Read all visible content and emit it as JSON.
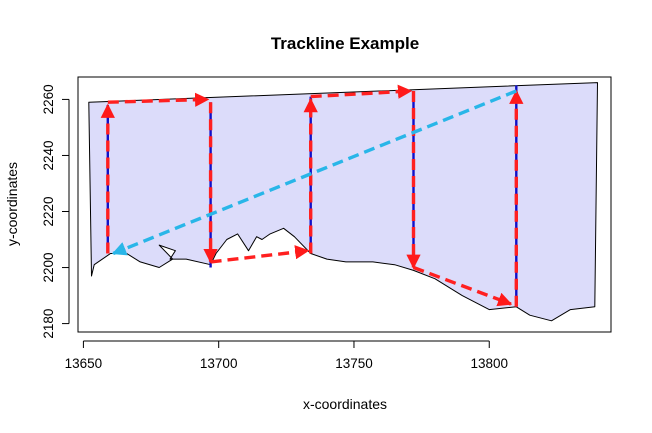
{
  "chart_data": {
    "type": "line",
    "title": "Trackline Example",
    "xlabel": "x-coordinates",
    "ylabel": "y-coordinates",
    "xlim": [
      13648,
      13845
    ],
    "ylim": [
      2177,
      2268
    ],
    "x_ticks": [
      13650,
      13700,
      13750,
      13800
    ],
    "y_ticks": [
      2180,
      2200,
      2220,
      2240,
      2260
    ],
    "polygon": {
      "fill": "#dcdcfa",
      "outline": "#000000",
      "points": [
        [
          13652,
          2259
        ],
        [
          13840,
          2266
        ],
        [
          13839,
          2186
        ],
        [
          13830,
          2185
        ],
        [
          13823,
          2181
        ],
        [
          13815,
          2183
        ],
        [
          13810,
          2186
        ],
        [
          13800,
          2185
        ],
        [
          13790,
          2190
        ],
        [
          13780,
          2196
        ],
        [
          13772,
          2199
        ],
        [
          13765,
          2201
        ],
        [
          13757,
          2202
        ],
        [
          13747,
          2202
        ],
        [
          13740,
          2203
        ],
        [
          13734,
          2205
        ],
        [
          13728,
          2211
        ],
        [
          13724,
          2214
        ],
        [
          13719,
          2212
        ],
        [
          13716,
          2210
        ],
        [
          13714,
          2211
        ],
        [
          13711,
          2206
        ],
        [
          13707,
          2212
        ],
        [
          13703,
          2210
        ],
        [
          13699,
          2205
        ],
        [
          13697,
          2201
        ],
        [
          13688,
          2203
        ],
        [
          13682,
          2203
        ],
        [
          13684,
          2206
        ],
        [
          13678,
          2208
        ],
        [
          13683,
          2203
        ],
        [
          13678,
          2200
        ],
        [
          13671,
          2202
        ],
        [
          13666,
          2205
        ],
        [
          13660,
          2205
        ],
        [
          13654,
          2201
        ],
        [
          13653,
          2197
        ],
        [
          13652,
          2259
        ]
      ]
    },
    "series": [
      {
        "style": "vertical-transects",
        "color": "#1010c8",
        "segments": [
          [
            [
              13659,
              2205
            ],
            [
              13659,
              2258
            ]
          ],
          [
            [
              13697,
              2200
            ],
            [
              13697,
              2259
            ]
          ],
          [
            [
              13734,
              2205
            ],
            [
              13734,
              2261
            ]
          ],
          [
            [
              13772,
              2200
            ],
            [
              13772,
              2263
            ]
          ],
          [
            [
              13810,
              2186
            ],
            [
              13810,
              2265
            ]
          ]
        ]
      },
      {
        "style": "dashed-arrows",
        "color": "#ff2020",
        "segments": [
          [
            [
              13659,
              2205
            ],
            [
              13659,
              2258
            ]
          ],
          [
            [
              13659,
              2259
            ],
            [
              13696,
              2260
            ]
          ],
          [
            [
              13697,
              2259
            ],
            [
              13697,
              2202
            ]
          ],
          [
            [
              13697,
              2202
            ],
            [
              13733,
              2206
            ]
          ],
          [
            [
              13734,
              2205
            ],
            [
              13734,
              2260
            ]
          ],
          [
            [
              13734,
              2261
            ],
            [
              13771,
              2263
            ]
          ],
          [
            [
              13772,
              2263
            ],
            [
              13772,
              2200
            ]
          ],
          [
            [
              13772,
              2200
            ],
            [
              13808,
              2187
            ]
          ],
          [
            [
              13810,
              2186
            ],
            [
              13810,
              2263
            ]
          ]
        ]
      },
      {
        "style": "dashed-arrow",
        "color": "#29b6e8",
        "segments": [
          [
            [
              13810,
              2263
            ],
            [
              13661,
              2205
            ]
          ]
        ]
      }
    ]
  }
}
